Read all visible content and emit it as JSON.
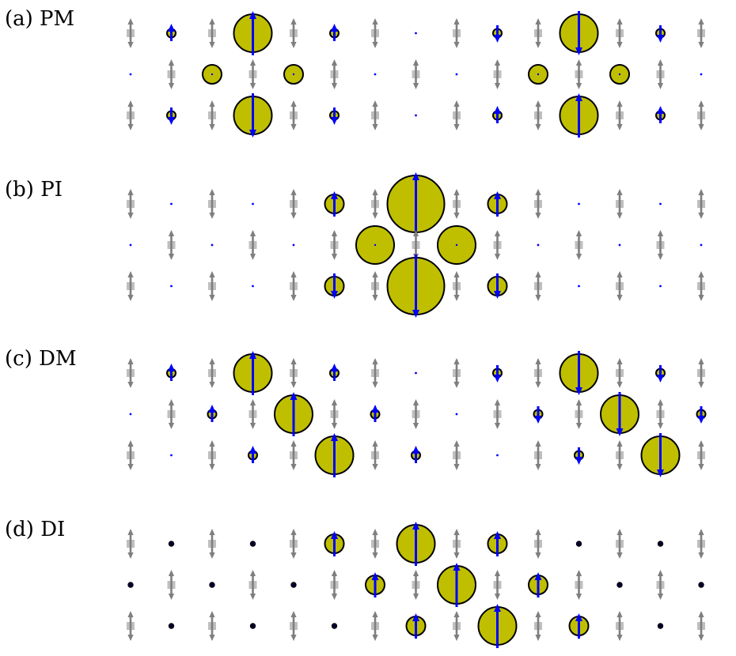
{
  "panels": [
    {
      "id": "a",
      "label": "(a) PM",
      "rows": [
        [
          [
            "s",
            0
          ],
          [
            "d",
            0.5,
            -1
          ],
          [
            "s",
            0
          ],
          [
            "d",
            1,
            -1
          ],
          [
            "s",
            0
          ],
          [
            "d",
            0.5,
            -1
          ],
          [
            "s",
            0
          ],
          [
            "d",
            0,
            0
          ],
          [
            "s",
            0
          ],
          [
            "d",
            0.5,
            1
          ],
          [
            "s",
            0
          ],
          [
            "d",
            1,
            1
          ],
          [
            "s",
            0
          ],
          [
            "d",
            0.5,
            1
          ],
          [
            "s",
            0
          ],
          [
            "d",
            0.5,
            1
          ]
        ],
        [
          [
            "d",
            0,
            0
          ],
          [
            "s",
            1
          ],
          [
            "d",
            0.6,
            0
          ],
          [
            "s",
            1
          ],
          [
            "d",
            0.6,
            0
          ],
          [
            "s",
            1
          ],
          [
            "d",
            0,
            0
          ],
          [
            "s",
            1
          ],
          [
            "d",
            0,
            0
          ],
          [
            "s",
            1
          ],
          [
            "d",
            0.6,
            0
          ],
          [
            "s",
            1
          ],
          [
            "d",
            0.6,
            0
          ],
          [
            "s",
            1
          ],
          [
            "d",
            0,
            0
          ],
          [
            "s",
            1
          ]
        ],
        [
          [
            "s",
            0
          ],
          [
            "d",
            0.5,
            1
          ],
          [
            "s",
            0
          ],
          [
            "d",
            1,
            1
          ],
          [
            "s",
            0
          ],
          [
            "d",
            0.5,
            1
          ],
          [
            "s",
            0
          ],
          [
            "d",
            0,
            0
          ],
          [
            "s",
            0
          ],
          [
            "d",
            0.5,
            -1
          ],
          [
            "s",
            0
          ],
          [
            "d",
            1,
            -1
          ],
          [
            "s",
            0
          ],
          [
            "d",
            0.5,
            -1
          ],
          [
            "s",
            0
          ],
          [
            "d",
            0.5,
            -1
          ]
        ]
      ]
    },
    {
      "id": "b",
      "label": "(b) PI",
      "rows": [
        [
          [
            "s",
            0
          ],
          [
            "d",
            0,
            0
          ],
          [
            "s",
            0
          ],
          [
            "d",
            0,
            0
          ],
          [
            "s",
            0
          ],
          [
            "d",
            0.6,
            -1
          ],
          [
            "s",
            0
          ],
          [
            "d",
            2,
            -1
          ],
          [
            "s",
            0
          ],
          [
            "d",
            0.6,
            -1
          ],
          [
            "s",
            0
          ],
          [
            "d",
            0,
            0
          ],
          [
            "s",
            0
          ],
          [
            "d",
            0,
            0
          ],
          [
            "s",
            0
          ],
          [
            "d",
            0,
            0
          ]
        ],
        [
          [
            "d",
            0,
            0
          ],
          [
            "s",
            1
          ],
          [
            "d",
            0,
            0
          ],
          [
            "s",
            1
          ],
          [
            "d",
            0,
            0
          ],
          [
            "s",
            1
          ],
          [
            "d",
            1,
            0
          ],
          [
            "s",
            1
          ],
          [
            "d",
            1,
            0
          ],
          [
            "s",
            1
          ],
          [
            "d",
            0,
            0
          ],
          [
            "s",
            1
          ],
          [
            "d",
            0,
            0
          ],
          [
            "s",
            1
          ],
          [
            "d",
            0,
            0
          ],
          [
            "s",
            1
          ]
        ],
        [
          [
            "s",
            0
          ],
          [
            "d",
            0,
            0
          ],
          [
            "s",
            0
          ],
          [
            "d",
            0,
            0
          ],
          [
            "s",
            0
          ],
          [
            "d",
            0.6,
            1
          ],
          [
            "s",
            0
          ],
          [
            "d",
            2,
            1
          ],
          [
            "s",
            0
          ],
          [
            "d",
            0.6,
            1
          ],
          [
            "s",
            0
          ],
          [
            "d",
            0,
            0
          ],
          [
            "s",
            0
          ],
          [
            "d",
            0,
            0
          ],
          [
            "s",
            0
          ],
          [
            "d",
            0,
            0
          ]
        ]
      ]
    },
    {
      "id": "c",
      "label": "(c) DM",
      "rows": [
        [
          [
            "s",
            0
          ],
          [
            "d",
            0.5,
            -1
          ],
          [
            "s",
            0
          ],
          [
            "d",
            1,
            -1
          ],
          [
            "s",
            0
          ],
          [
            "d",
            0.5,
            -1
          ],
          [
            "s",
            0
          ],
          [
            "d",
            0,
            0
          ],
          [
            "s",
            0
          ],
          [
            "d",
            0.5,
            1
          ],
          [
            "s",
            0
          ],
          [
            "d",
            1,
            1
          ],
          [
            "s",
            0
          ],
          [
            "d",
            0.5,
            1
          ],
          [
            "s",
            0
          ],
          [
            "d",
            0.5,
            1
          ]
        ],
        [
          [
            "d",
            0,
            0
          ],
          [
            "s",
            1
          ],
          [
            "d",
            0.5,
            -1
          ],
          [
            "s",
            1
          ],
          [
            "d",
            1,
            -1
          ],
          [
            "s",
            1
          ],
          [
            "d",
            0.5,
            -1
          ],
          [
            "s",
            1
          ],
          [
            "d",
            0,
            0
          ],
          [
            "s",
            1
          ],
          [
            "d",
            0.5,
            1
          ],
          [
            "s",
            1
          ],
          [
            "d",
            1,
            1
          ],
          [
            "s",
            1
          ],
          [
            "d",
            0.5,
            1
          ],
          [
            "s",
            1
          ]
        ],
        [
          [
            "s",
            0
          ],
          [
            "d",
            0,
            0
          ],
          [
            "s",
            0
          ],
          [
            "d",
            0.5,
            -1
          ],
          [
            "s",
            0
          ],
          [
            "d",
            1,
            -1
          ],
          [
            "s",
            0
          ],
          [
            "d",
            0.5,
            -1
          ],
          [
            "s",
            0
          ],
          [
            "d",
            0,
            0
          ],
          [
            "s",
            0
          ],
          [
            "d",
            0.5,
            1
          ],
          [
            "s",
            0
          ],
          [
            "d",
            1,
            1
          ],
          [
            "s",
            0
          ],
          [
            "d",
            0.5,
            1
          ]
        ]
      ]
    },
    {
      "id": "d",
      "label": "(d) DI",
      "rows": [
        [
          [
            "s",
            0
          ],
          [
            "d",
            0.15,
            0
          ],
          [
            "s",
            0
          ],
          [
            "d",
            0.15,
            0
          ],
          [
            "s",
            0
          ],
          [
            "d",
            0.6,
            -1
          ],
          [
            "s",
            0
          ],
          [
            "d",
            1.3,
            -1
          ],
          [
            "s",
            0
          ],
          [
            "d",
            0.6,
            -1
          ],
          [
            "s",
            0
          ],
          [
            "d",
            0.15,
            0
          ],
          [
            "s",
            0
          ],
          [
            "d",
            0.15,
            0
          ],
          [
            "s",
            0
          ],
          [
            "d",
            0.15,
            0
          ]
        ],
        [
          [
            "d",
            0.15,
            0
          ],
          [
            "s",
            1
          ],
          [
            "d",
            0.15,
            0
          ],
          [
            "s",
            1
          ],
          [
            "d",
            0.15,
            0
          ],
          [
            "s",
            1
          ],
          [
            "d",
            0.6,
            -1
          ],
          [
            "s",
            1
          ],
          [
            "d",
            1.3,
            -1
          ],
          [
            "s",
            1
          ],
          [
            "d",
            0.6,
            -1
          ],
          [
            "s",
            1
          ],
          [
            "d",
            0.15,
            0
          ],
          [
            "s",
            1
          ],
          [
            "d",
            0.15,
            0
          ],
          [
            "s",
            1
          ]
        ],
        [
          [
            "s",
            0
          ],
          [
            "d",
            0.15,
            0
          ],
          [
            "s",
            0
          ],
          [
            "d",
            0.15,
            0
          ],
          [
            "s",
            0
          ],
          [
            "d",
            0.15,
            0
          ],
          [
            "s",
            0
          ],
          [
            "d",
            0.6,
            -1
          ],
          [
            "s",
            0
          ],
          [
            "d",
            1.3,
            -1
          ],
          [
            "s",
            0
          ],
          [
            "d",
            0.6,
            -1
          ],
          [
            "s",
            0
          ],
          [
            "d",
            0.15,
            0
          ],
          [
            "s",
            0
          ],
          [
            "d",
            0.15,
            0
          ]
        ]
      ]
    }
  ],
  "colors": {
    "disk_fill": "#bfbf00",
    "disk_stroke": "#000000",
    "arrow": "#0000ff",
    "spin": "#7f7f7f",
    "spin_light": "#bfbfbf"
  }
}
